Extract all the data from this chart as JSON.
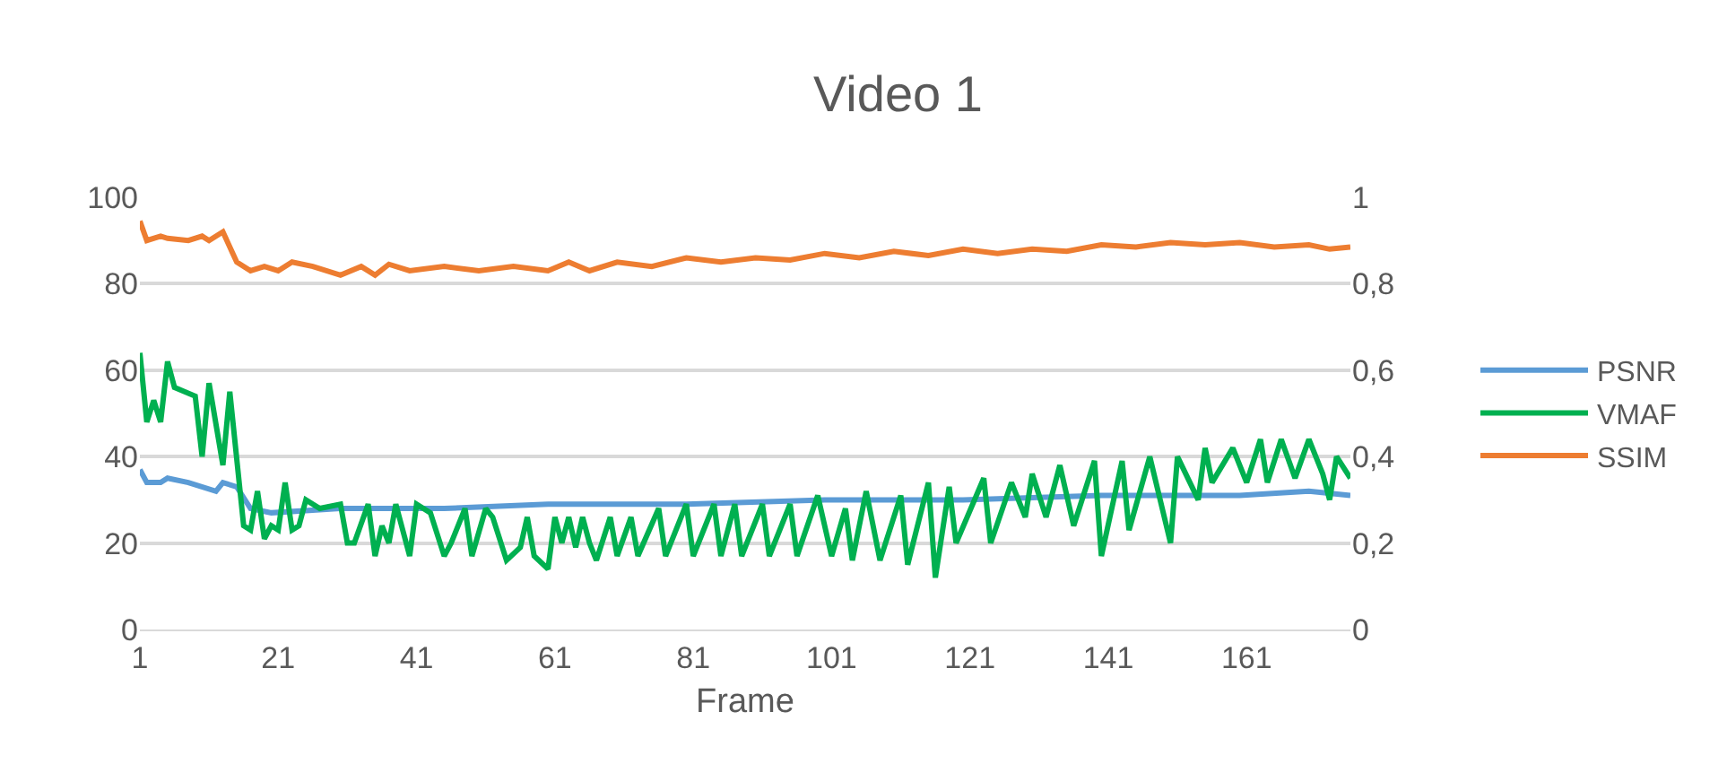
{
  "chart_data": {
    "type": "line",
    "title": "Video 1",
    "xlabel": "Frame",
    "xlim": [
      1,
      176
    ],
    "xticks": [
      1,
      21,
      41,
      61,
      81,
      101,
      121,
      141,
      161
    ],
    "ylim": [
      0,
      100
    ],
    "yticks": [
      0,
      20,
      40,
      60,
      80,
      100
    ],
    "y2lim": [
      0,
      1
    ],
    "y2ticks": [
      0,
      {
        "value": 0.2,
        "label": "0,2"
      },
      {
        "value": 0.4,
        "label": "0,4"
      },
      {
        "value": 0.6,
        "label": "0,6"
      },
      {
        "value": 0.8,
        "label": "0,8"
      },
      1
    ],
    "grid": "y",
    "legend": "right",
    "marker": "none",
    "line_style": "solid",
    "series": [
      {
        "name": "PSNR",
        "color": "#5b9bd5",
        "x": [
          1,
          2,
          4,
          5,
          8,
          12,
          13,
          15,
          17,
          20,
          30,
          45,
          60,
          80,
          100,
          120,
          140,
          160,
          170,
          176
        ],
        "values": [
          37,
          34,
          34,
          35,
          34,
          32,
          34,
          33,
          28,
          27,
          28,
          28,
          29,
          29,
          30,
          30,
          31,
          31,
          32,
          31
        ]
      },
      {
        "name": "VMAF",
        "color": "#00b050",
        "x": [
          1,
          2,
          3,
          4,
          5,
          6,
          9,
          10,
          11,
          13,
          14,
          16,
          17,
          18,
          19,
          20,
          21,
          22,
          23,
          24,
          25,
          27,
          30,
          31,
          32,
          34,
          35,
          36,
          37,
          38,
          40,
          41,
          43,
          45,
          46,
          48,
          49,
          51,
          52,
          54,
          56,
          57,
          58,
          60,
          61,
          62,
          63,
          64,
          65,
          66,
          67,
          69,
          70,
          72,
          73,
          76,
          77,
          80,
          81,
          84,
          85,
          87,
          88,
          91,
          92,
          95,
          96,
          99,
          101,
          103,
          104,
          106,
          108,
          111,
          112,
          115,
          116,
          118,
          119,
          123,
          124,
          127,
          129,
          130,
          132,
          134,
          136,
          139,
          140,
          143,
          144,
          147,
          150,
          151,
          154,
          155,
          156,
          159,
          161,
          163,
          164,
          166,
          168,
          170,
          172,
          173,
          174,
          176
        ],
        "values": [
          64,
          48,
          53,
          48,
          62,
          56,
          54,
          40,
          57,
          38,
          55,
          24,
          23,
          32,
          21,
          24,
          23,
          34,
          23,
          24,
          30,
          28,
          29,
          20,
          20,
          29,
          17,
          24,
          20,
          29,
          17,
          29,
          27,
          17,
          20,
          28,
          17,
          28,
          26,
          16,
          19,
          26,
          17,
          14,
          26,
          20,
          26,
          19,
          26,
          20,
          16,
          26,
          17,
          26,
          17,
          28,
          17,
          29,
          17,
          29,
          17,
          29,
          17,
          29,
          17,
          29,
          17,
          31,
          17,
          28,
          16,
          32,
          16,
          31,
          15,
          34,
          12,
          33,
          20,
          35,
          20,
          34,
          26,
          36,
          26,
          38,
          24,
          39,
          17,
          39,
          23,
          40,
          20,
          40,
          30,
          42,
          34,
          42,
          34,
          44,
          34,
          44,
          35,
          44,
          36,
          30,
          40,
          35
        ]
      },
      {
        "name": "SSIM",
        "color": "#ed7d31",
        "axis": "y2",
        "x": [
          1,
          2,
          4,
          5,
          8,
          10,
          11,
          13,
          15,
          17,
          19,
          21,
          23,
          26,
          30,
          33,
          35,
          37,
          40,
          45,
          50,
          55,
          60,
          63,
          66,
          70,
          75,
          80,
          85,
          90,
          95,
          100,
          105,
          110,
          115,
          120,
          125,
          130,
          135,
          140,
          145,
          150,
          155,
          160,
          165,
          170,
          173,
          176
        ],
        "values": [
          0.945,
          0.9,
          0.91,
          0.905,
          0.9,
          0.91,
          0.9,
          0.92,
          0.85,
          0.83,
          0.84,
          0.83,
          0.85,
          0.84,
          0.82,
          0.84,
          0.82,
          0.845,
          0.83,
          0.84,
          0.83,
          0.84,
          0.83,
          0.85,
          0.83,
          0.85,
          0.84,
          0.86,
          0.85,
          0.86,
          0.855,
          0.87,
          0.86,
          0.875,
          0.865,
          0.88,
          0.87,
          0.88,
          0.875,
          0.89,
          0.885,
          0.895,
          0.89,
          0.895,
          0.885,
          0.89,
          0.88,
          0.885
        ]
      }
    ]
  }
}
